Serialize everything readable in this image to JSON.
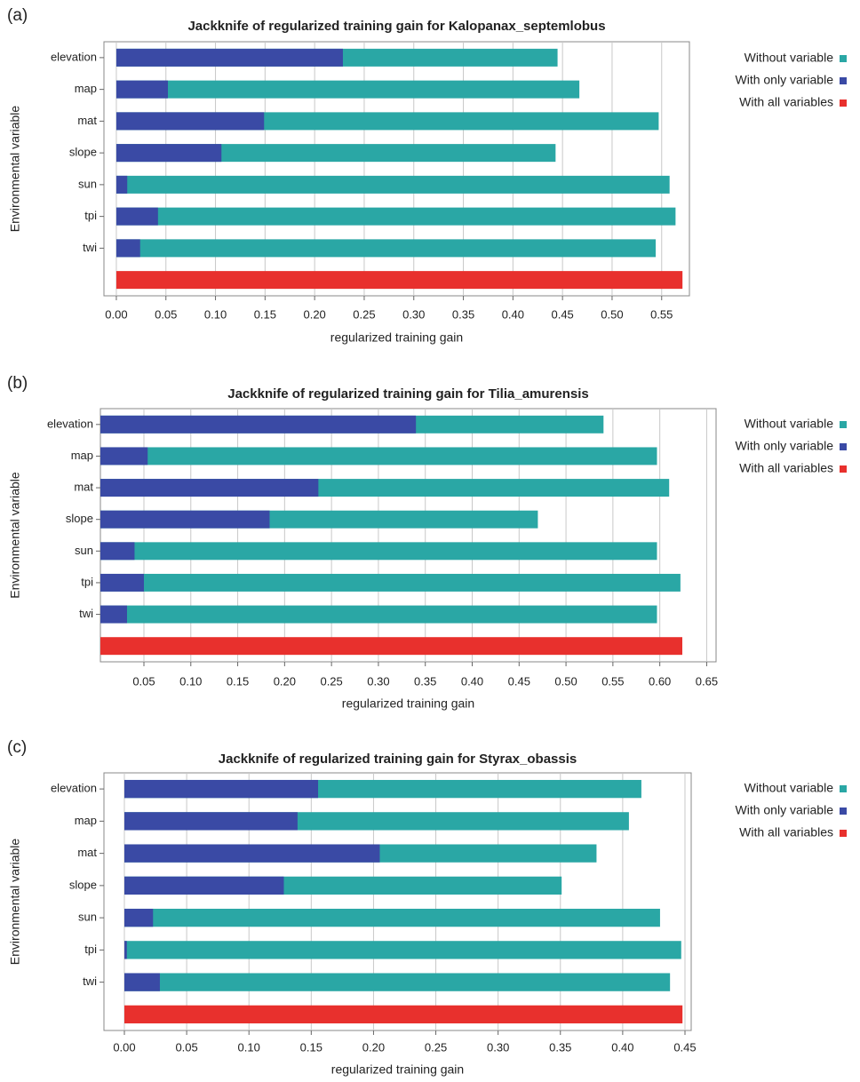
{
  "chart_data": [
    {
      "type": "bar",
      "orientation": "horizontal",
      "panel_label": "(a)",
      "title": "Jackknife of regularized training gain for Kalopanax_septemlobus",
      "xlabel": "regularized training gain",
      "ylabel": "Environmental variable",
      "categories": [
        "elevation",
        "map",
        "mat",
        "slope",
        "sun",
        "tpi",
        "twi",
        null
      ],
      "series": [
        {
          "name": "Without variable",
          "color": "#2aa7a5",
          "values": [
            0.445,
            0.467,
            0.547,
            0.443,
            0.558,
            0.564,
            0.544,
            null
          ]
        },
        {
          "name": "With only variable",
          "color": "#3a4aa5",
          "values": [
            0.2285,
            0.052,
            0.149,
            0.106,
            0.011,
            0.042,
            0.024,
            null
          ]
        },
        {
          "name": "With all variables",
          "color": "#e8302d",
          "values": [
            null,
            null,
            null,
            null,
            null,
            null,
            null,
            0.571
          ]
        }
      ],
      "xlim": [
        -0.0125,
        0.578
      ],
      "xticks": [
        {
          "value": 0,
          "label": "0.00"
        },
        0.05,
        {
          "value": 0.1,
          "label": "0.10"
        },
        0.15,
        {
          "value": 0.2,
          "label": "0.20"
        },
        0.25,
        {
          "value": 0.3,
          "label": "0.30"
        },
        0.35,
        {
          "value": 0.4,
          "label": "0.40"
        },
        0.45,
        {
          "value": 0.5,
          "label": "0.50"
        },
        0.55
      ],
      "grid": true,
      "legend": "right"
    },
    {
      "type": "bar",
      "orientation": "horizontal",
      "panel_label": "(b)",
      "title": "Jackknife of regularized training gain for Tilia_amurensis",
      "xlabel": "regularized training gain",
      "ylabel": "Environmental variable",
      "categories": [
        "elevation",
        "map",
        "mat",
        "slope",
        "sun",
        "tpi",
        "twi",
        null
      ],
      "series": [
        {
          "name": "Without variable",
          "color": "#2aa7a5",
          "values": [
            0.54,
            0.597,
            0.61,
            0.47,
            0.597,
            0.622,
            0.597,
            null
          ]
        },
        {
          "name": "With only variable",
          "color": "#3a4aa5",
          "values": [
            0.34,
            0.054,
            0.236,
            0.184,
            0.04,
            0.05,
            0.032,
            null
          ]
        },
        {
          "name": "With all variables",
          "color": "#e8302d",
          "values": [
            null,
            null,
            null,
            null,
            null,
            null,
            null,
            0.624
          ]
        }
      ],
      "xlim": [
        0.0036,
        0.66
      ],
      "xticks": [
        0.05,
        {
          "value": 0.1,
          "label": "0.10"
        },
        0.15,
        {
          "value": 0.2,
          "label": "0.20"
        },
        0.25,
        {
          "value": 0.3,
          "label": "0.30"
        },
        0.35,
        {
          "value": 0.4,
          "label": "0.40"
        },
        0.45,
        {
          "value": 0.5,
          "label": "0.50"
        },
        0.55,
        {
          "value": 0.6,
          "label": "0.60"
        },
        0.65
      ],
      "grid": true,
      "legend": "right"
    },
    {
      "type": "bar",
      "orientation": "horizontal",
      "panel_label": "(c)",
      "title": "Jackknife of regularized training gain for Styrax_obassis",
      "xlabel": "regularized training gain",
      "ylabel": "Environmental variable",
      "categories": [
        "elevation",
        "map",
        "mat",
        "slope",
        "sun",
        "tpi",
        "twi",
        null
      ],
      "series": [
        {
          "name": "Without variable",
          "color": "#2aa7a5",
          "values": [
            0.415,
            0.405,
            0.379,
            0.351,
            0.43,
            0.447,
            0.438,
            null
          ]
        },
        {
          "name": "With only variable",
          "color": "#3a4aa5",
          "values": [
            0.1555,
            0.139,
            0.205,
            0.128,
            0.023,
            0.002,
            0.0285,
            null
          ]
        },
        {
          "name": "With all variables",
          "color": "#e8302d",
          "values": [
            null,
            null,
            null,
            null,
            null,
            null,
            null,
            0.448
          ]
        }
      ],
      "xlim": [
        -0.0164,
        0.455
      ],
      "xticks": [
        {
          "value": 0,
          "label": "0.00"
        },
        0.05,
        {
          "value": 0.1,
          "label": "0.10"
        },
        0.15,
        {
          "value": 0.2,
          "label": "0.20"
        },
        0.25,
        {
          "value": 0.3,
          "label": "0.30"
        },
        0.35,
        {
          "value": 0.4,
          "label": "0.40"
        },
        0.45
      ],
      "grid": true,
      "legend": "right"
    }
  ]
}
